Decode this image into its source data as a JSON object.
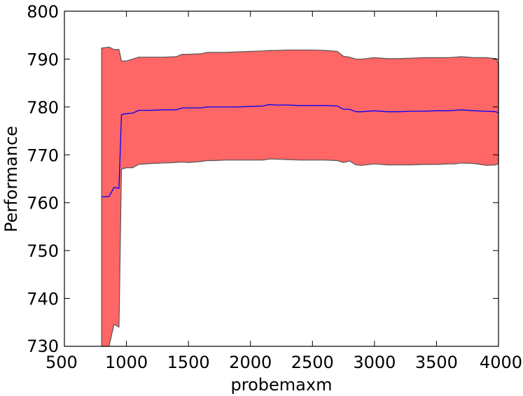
{
  "chart_data": {
    "type": "area",
    "title": "",
    "xlabel": "probemaxm",
    "ylabel": "Performance",
    "xlim": [
      500,
      4000
    ],
    "ylim": [
      730,
      800
    ],
    "x_ticks": [
      500,
      1000,
      1500,
      2000,
      2500,
      3000,
      3500,
      4000
    ],
    "y_ticks": [
      730,
      740,
      750,
      760,
      770,
      780,
      790,
      800
    ],
    "grid": false,
    "legend": "none",
    "colors": {
      "band": "#ff6666",
      "band_edge": "#555555",
      "line": "#0000ff"
    },
    "series": [
      {
        "kind": "band",
        "x": [
          800,
          860,
          900,
          940,
          960,
          1000,
          1050,
          1100,
          1200,
          1300,
          1400,
          1450,
          1500,
          1600,
          1650,
          1700,
          1800,
          1900,
          2000,
          2100,
          2150,
          2200,
          2300,
          2400,
          2500,
          2600,
          2700,
          2750,
          2800,
          2850,
          2900,
          3000,
          3100,
          3200,
          3300,
          3400,
          3500,
          3600,
          3650,
          3700,
          3800,
          3900,
          3980,
          4000
        ],
        "upper": [
          792.3,
          792.5,
          792.0,
          792.0,
          789.6,
          789.6,
          790.0,
          790.4,
          790.4,
          790.4,
          790.5,
          791.0,
          791.0,
          791.1,
          791.4,
          791.4,
          791.4,
          791.5,
          791.6,
          791.7,
          791.8,
          791.8,
          791.9,
          791.9,
          791.9,
          791.8,
          791.6,
          790.6,
          790.4,
          790.0,
          790.0,
          790.3,
          790.1,
          790.1,
          790.2,
          790.3,
          790.3,
          790.3,
          790.4,
          790.5,
          790.3,
          790.3,
          790.1,
          789.0
        ],
        "lower": [
          730.0,
          730.0,
          734.6,
          734.0,
          767.0,
          767.3,
          767.3,
          768.0,
          768.2,
          768.3,
          768.4,
          768.5,
          768.4,
          768.6,
          768.8,
          768.8,
          768.9,
          768.9,
          768.9,
          768.9,
          769.1,
          769.1,
          769.0,
          768.9,
          768.9,
          768.9,
          768.8,
          768.4,
          768.7,
          767.9,
          767.8,
          768.1,
          767.9,
          767.9,
          767.9,
          768.0,
          768.0,
          768.1,
          768.1,
          768.3,
          768.2,
          767.8,
          767.9,
          768.2
        ]
      },
      {
        "kind": "line",
        "x": [
          800,
          860,
          900,
          940,
          960,
          1000,
          1050,
          1100,
          1200,
          1300,
          1400,
          1450,
          1500,
          1600,
          1650,
          1700,
          1800,
          1900,
          2000,
          2100,
          2150,
          2200,
          2300,
          2400,
          2500,
          2600,
          2700,
          2750,
          2800,
          2850,
          2900,
          3000,
          3100,
          3200,
          3300,
          3400,
          3500,
          3600,
          3650,
          3700,
          3800,
          3900,
          3980,
          4000
        ],
        "values": [
          761.2,
          761.3,
          763.2,
          763.0,
          778.4,
          778.6,
          778.7,
          779.3,
          779.3,
          779.4,
          779.4,
          779.8,
          779.8,
          779.8,
          780.0,
          780.0,
          780.0,
          780.0,
          780.1,
          780.2,
          780.5,
          780.4,
          780.4,
          780.3,
          780.3,
          780.3,
          780.2,
          779.5,
          779.5,
          779.0,
          779.0,
          779.2,
          779.0,
          779.0,
          779.1,
          779.1,
          779.2,
          779.2,
          779.3,
          779.4,
          779.2,
          779.1,
          779.0,
          778.7
        ]
      }
    ]
  }
}
